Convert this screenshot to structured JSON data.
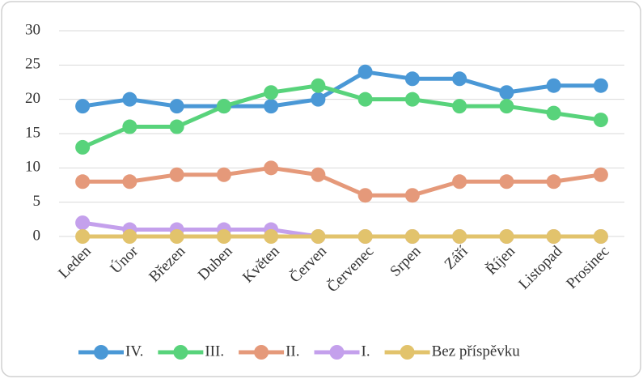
{
  "chart_data": {
    "type": "line",
    "categories": [
      "Leden",
      "Únor",
      "Březen",
      "Duben",
      "Květen",
      "Červen",
      "Červenec",
      "Srpen",
      "Září",
      "Říjen",
      "Listopad",
      "Prosinec"
    ],
    "series": [
      {
        "name": "IV.",
        "color": "#4a98d6",
        "values": [
          19,
          20,
          19,
          19,
          19,
          20,
          24,
          23,
          23,
          21,
          22,
          22
        ]
      },
      {
        "name": "III.",
        "color": "#58d37b",
        "values": [
          13,
          16,
          16,
          19,
          21,
          22,
          20,
          20,
          19,
          19,
          18,
          17
        ]
      },
      {
        "name": "II.",
        "color": "#e5997a",
        "values": [
          8,
          8,
          9,
          9,
          10,
          9,
          6,
          6,
          8,
          8,
          8,
          9
        ]
      },
      {
        "name": "I.",
        "color": "#c4a0ec",
        "values": [
          2,
          1,
          1,
          1,
          1,
          0,
          0,
          0,
          0,
          0,
          0,
          0
        ]
      },
      {
        "name": "Bez příspěvku",
        "color": "#e2c36c",
        "values": [
          0,
          0,
          0,
          0,
          0,
          0,
          0,
          0,
          0,
          0,
          0,
          0
        ]
      }
    ],
    "ylim": [
      0,
      30
    ],
    "yticks": [
      0,
      5,
      10,
      15,
      20,
      25,
      30
    ],
    "grid": true,
    "legend": "bottom"
  }
}
